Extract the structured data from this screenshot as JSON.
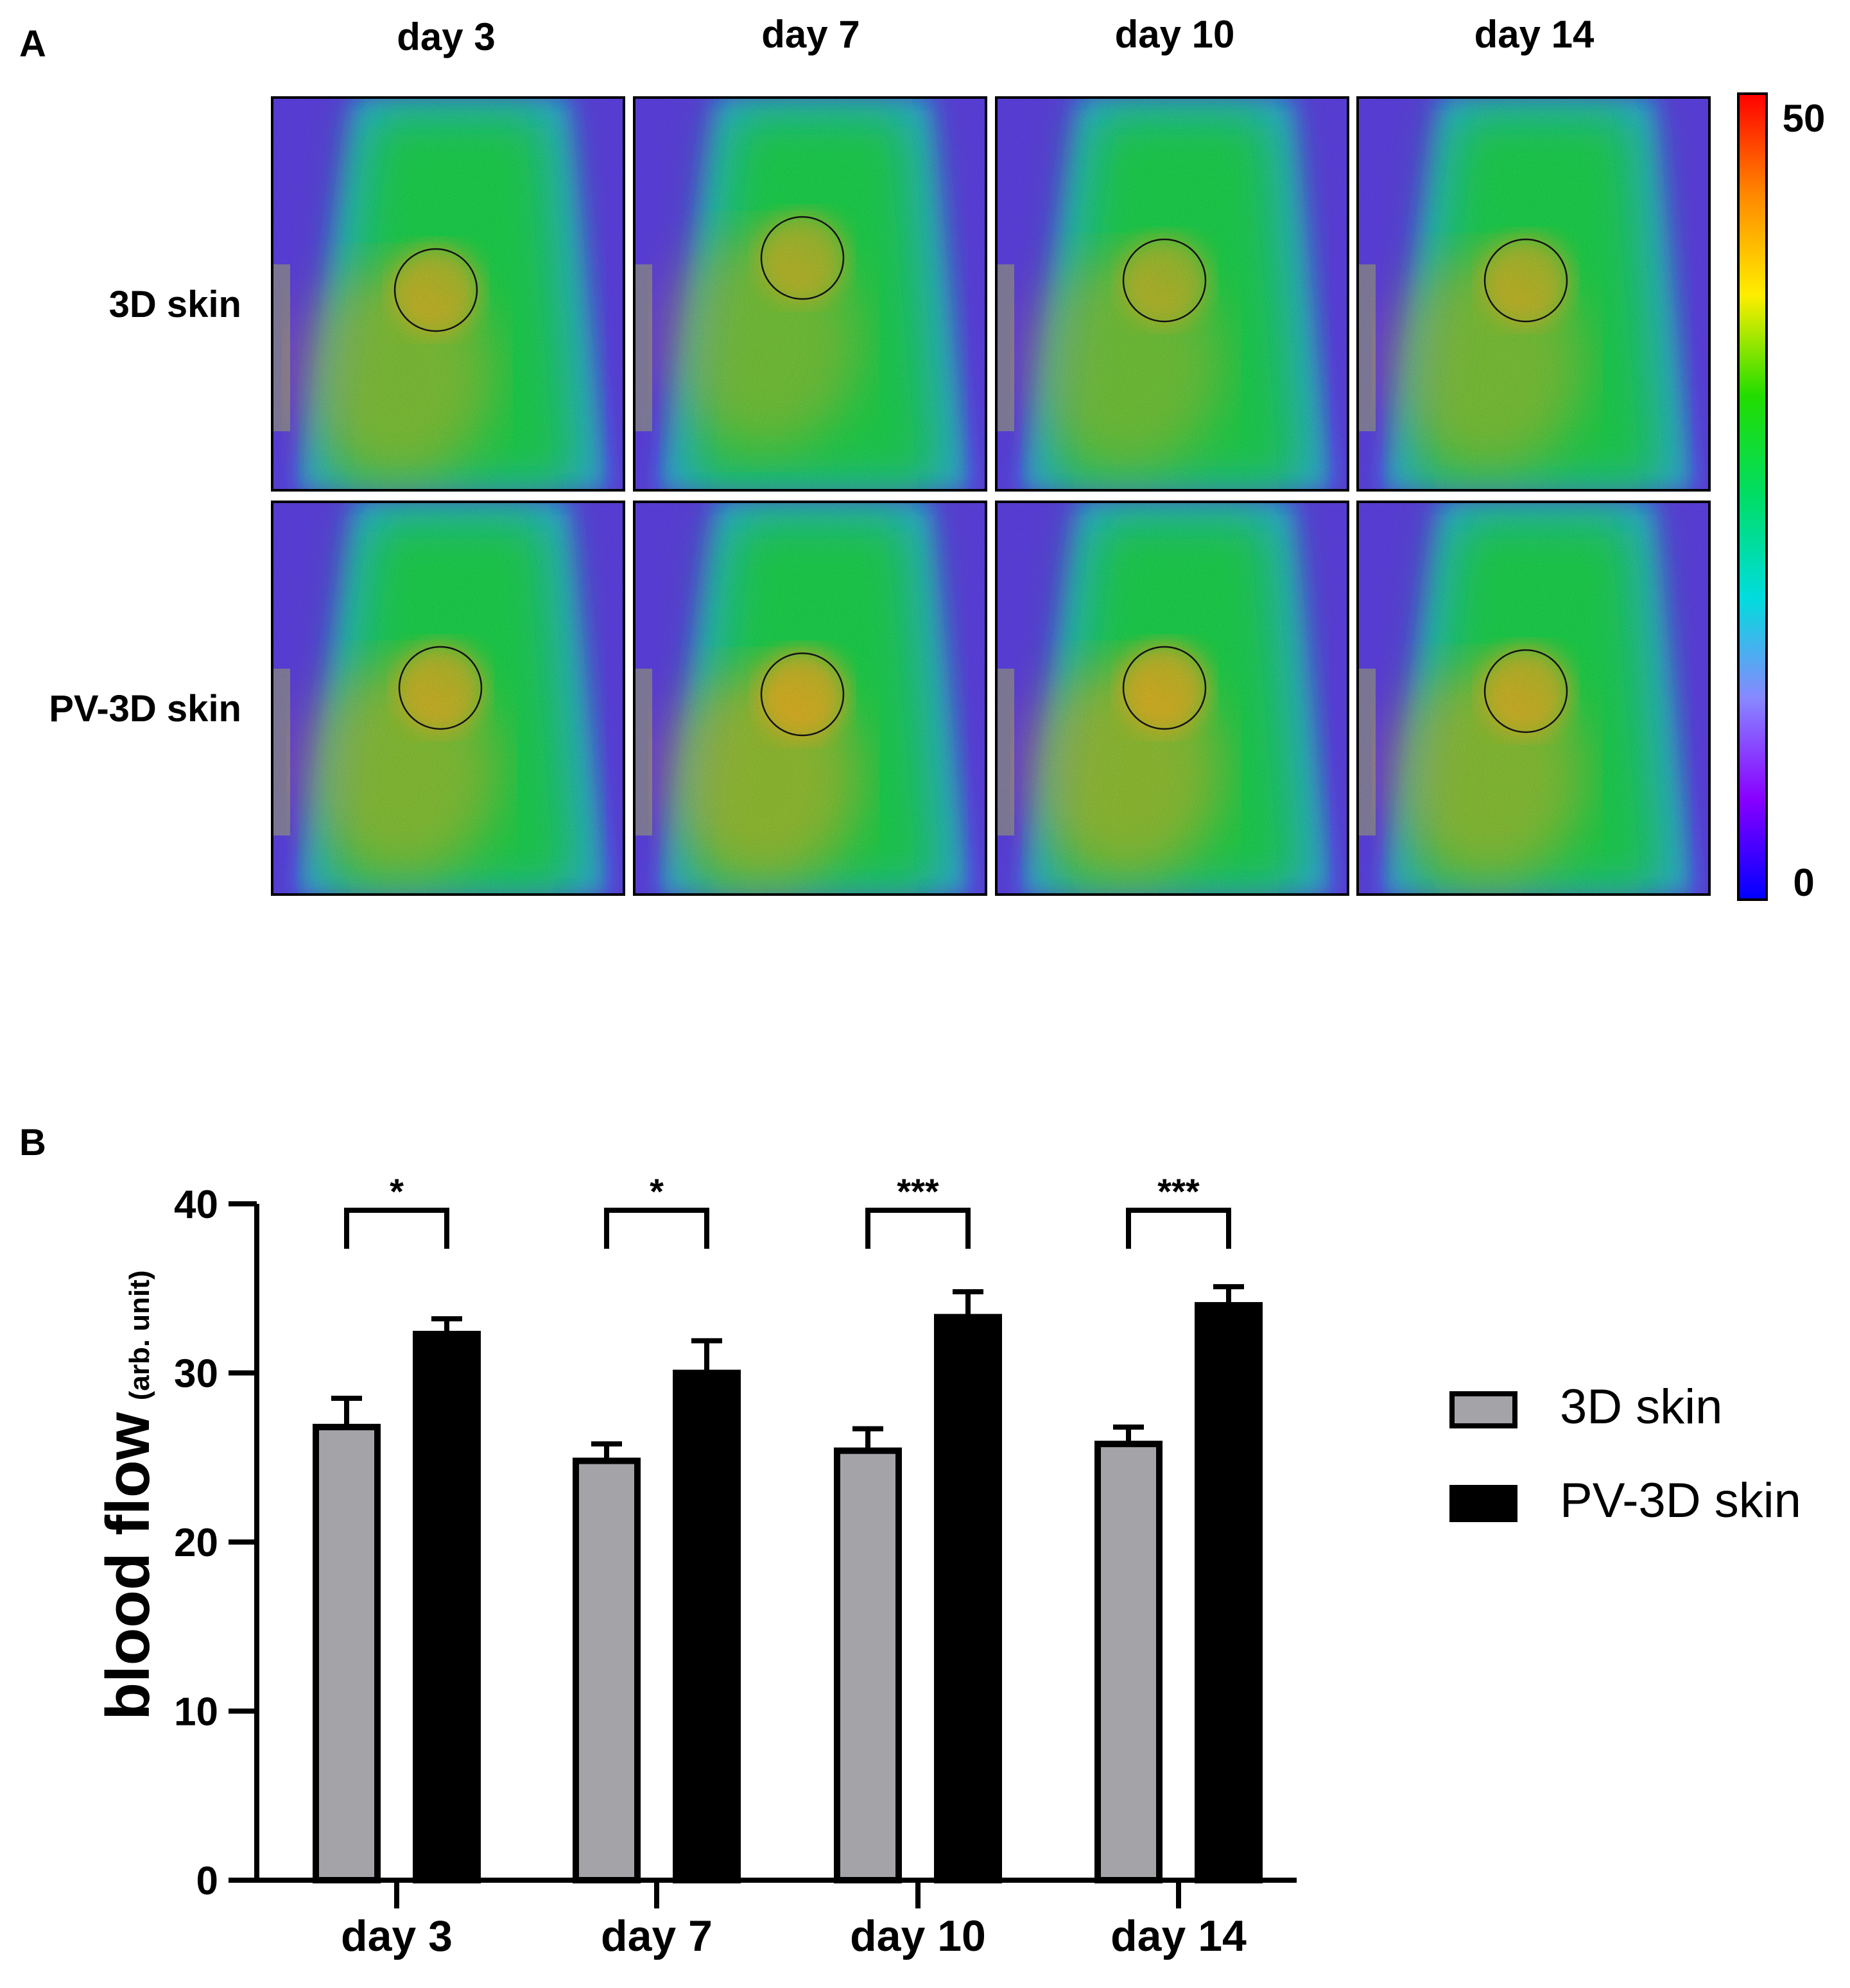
{
  "panel_a": {
    "label": "A",
    "column_labels": [
      "day 3",
      "day 7",
      "day 10",
      "day 14"
    ],
    "row_labels": [
      "3D skin",
      "PV-3D skin"
    ],
    "colorbar": {
      "max_label": "50",
      "min_label": "0",
      "stops": [
        "#ff0000",
        "#ff8800",
        "#ffee00",
        "#22dd00",
        "#00dd66",
        "#00dddd",
        "#8888ff",
        "#8800ff",
        "#0000ff"
      ]
    },
    "heat_intensity": [
      [
        0.58,
        0.52,
        0.5,
        0.56
      ],
      [
        0.62,
        0.7,
        0.68,
        0.64
      ]
    ],
    "colors": {
      "background": "#1fc84a",
      "cool": "#2aa7e0",
      "warm": "#f2a51c",
      "edge": "#5a3fd9",
      "grey": "#8a8a8a"
    }
  },
  "panel_b": {
    "label": "B",
    "legend": [
      "3D skin",
      "PV-3D skin"
    ],
    "colors": {
      "3D skin": "#a3a3a8",
      "PV-3D skin": "#000000"
    }
  },
  "chart_data": {
    "type": "bar",
    "title": "",
    "categories": [
      "day 3",
      "day 7",
      "day 10",
      "day 14"
    ],
    "series": [
      {
        "name": "3D skin",
        "values": [
          26.8,
          24.8,
          25.4,
          25.8
        ],
        "errors": [
          1.7,
          1.0,
          1.3,
          1.0
        ]
      },
      {
        "name": "PV-3D skin",
        "values": [
          32.3,
          30.0,
          33.3,
          34.0
        ],
        "errors": [
          0.9,
          1.9,
          1.5,
          1.1
        ]
      }
    ],
    "ylabel_main": "blood flow",
    "ylabel_sub": "(arb. unit)",
    "xlabel": "",
    "ylim": [
      0,
      40
    ],
    "yticks": [
      0,
      10,
      20,
      30,
      40
    ],
    "significance": [
      "*",
      "*",
      "***",
      "***"
    ],
    "legend_position": "right",
    "grid": false
  }
}
